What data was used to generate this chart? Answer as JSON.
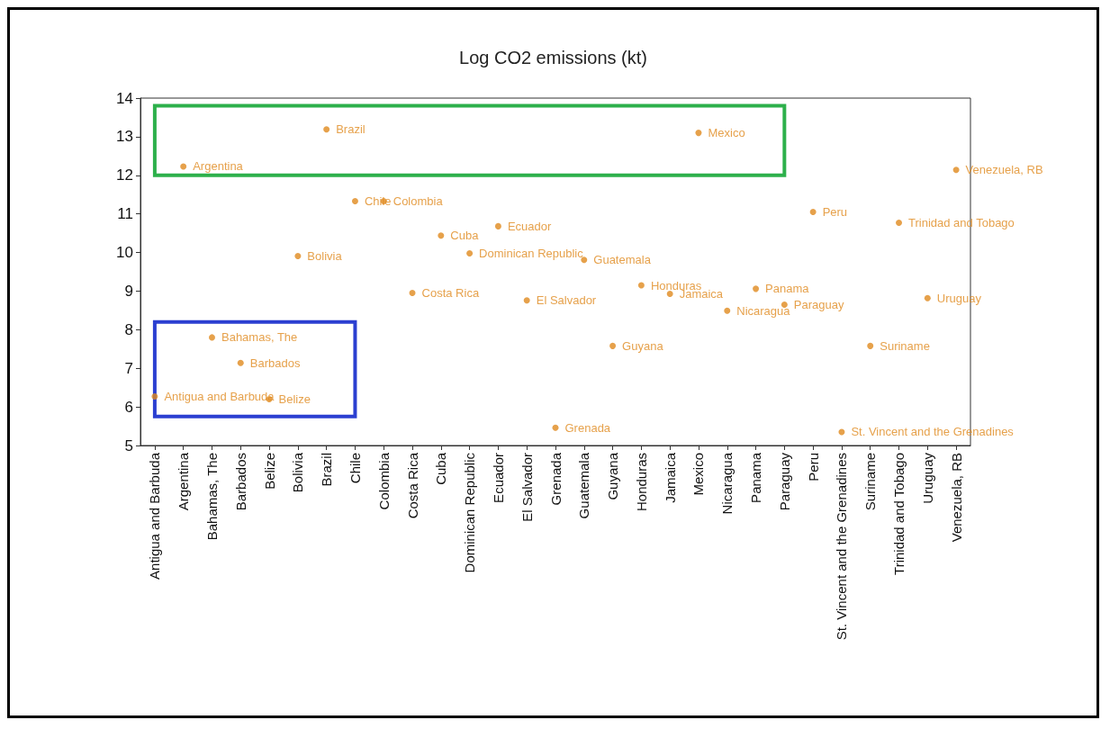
{
  "chart_data": {
    "type": "scatter",
    "title": "Log CO2 emissions (kt)",
    "categories": [
      "Antigua and Barbuda",
      "Argentina",
      "Bahamas, The",
      "Barbados",
      "Belize",
      "Bolivia",
      "Brazil",
      "Chile",
      "Colombia",
      "Costa Rica",
      "Cuba",
      "Dominican Republic",
      "Ecuador",
      "El Salvador",
      "Grenada",
      "Guatemala",
      "Guyana",
      "Honduras",
      "Jamaica",
      "Mexico",
      "Nicaragua",
      "Panama",
      "Paraguay",
      "Peru",
      "St. Vincent and the Grenadines",
      "Suriname",
      "Trinidad and Tobago",
      "Uruguay",
      "Venezuela, RB"
    ],
    "series": [
      {
        "color": "#e08a1e",
        "values": [
          6.27,
          12.23,
          7.8,
          7.14,
          6.2,
          9.91,
          13.19,
          11.33,
          11.33,
          8.95,
          10.44,
          9.98,
          10.68,
          8.76,
          5.46,
          9.81,
          7.58,
          9.15,
          8.93,
          13.1,
          8.49,
          9.06,
          8.65,
          11.05,
          5.35,
          7.58,
          10.77,
          8.82,
          12.14
        ]
      }
    ],
    "ylim": [
      5,
      14
    ],
    "yticks": [
      5,
      6,
      7,
      8,
      9,
      10,
      11,
      12,
      13,
      14
    ],
    "grid": false,
    "marker": "circle"
  }
}
